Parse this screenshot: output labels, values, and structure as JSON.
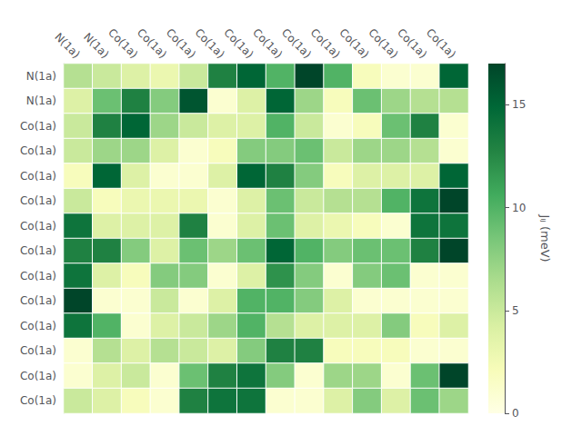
{
  "chart_data": {
    "type": "heatmap",
    "categories": [
      "N(1a)",
      "N(1a)",
      "Co(1a)",
      "Co(1a)",
      "Co(1a)",
      "Co(1a)",
      "Co(1a)",
      "Co(1a)",
      "Co(1a)",
      "Co(1a)",
      "Co(1a)",
      "Co(1a)",
      "Co(1a)",
      "Co(1a)"
    ],
    "matrix": [
      [
        6,
        5,
        4,
        3,
        5,
        13,
        15,
        10,
        17,
        10,
        2,
        1,
        1,
        15
      ],
      [
        4,
        9,
        13,
        8,
        16,
        1,
        4,
        15,
        7,
        2,
        9,
        7,
        6,
        6
      ],
      [
        5,
        13,
        15,
        7,
        5,
        4,
        4,
        10,
        5,
        1,
        2,
        9,
        13,
        1
      ],
      [
        5,
        7,
        7,
        4,
        1,
        2,
        8,
        8,
        9,
        5,
        7,
        7,
        6,
        1
      ],
      [
        2,
        15,
        4,
        1,
        1,
        4,
        15,
        13,
        8,
        2,
        4,
        4,
        4,
        15
      ],
      [
        5,
        2,
        3,
        3,
        3,
        1,
        4,
        9,
        5,
        6,
        6,
        10,
        14,
        17
      ],
      [
        14,
        4,
        4,
        4,
        13,
        1,
        4,
        9,
        4,
        3,
        2,
        1,
        14,
        14
      ],
      [
        13,
        13,
        8,
        4,
        9,
        7,
        9,
        15,
        10,
        8,
        9,
        9,
        13,
        17
      ],
      [
        14,
        4,
        2,
        8,
        8,
        1,
        4,
        12,
        8,
        1,
        8,
        9,
        1,
        1
      ],
      [
        17,
        1,
        1,
        5,
        1,
        4,
        10,
        10,
        8,
        4,
        1,
        1,
        1,
        1
      ],
      [
        14,
        10,
        1,
        4,
        5,
        7,
        10,
        6,
        4,
        4,
        4,
        8,
        2,
        4
      ],
      [
        1,
        6,
        4,
        6,
        5,
        4,
        8,
        13,
        13,
        2,
        2,
        2,
        1,
        1
      ],
      [
        1,
        4,
        5,
        1,
        9,
        13,
        14,
        8,
        1,
        7,
        7,
        1,
        9,
        17
      ],
      [
        5,
        4,
        2,
        1,
        13,
        14,
        14,
        1,
        1,
        4,
        8,
        4,
        9,
        7
      ]
    ],
    "colorbar": {
      "label": "Jᵢⱼ (meV)",
      "range": [
        0,
        17
      ],
      "ticks": [
        0,
        5,
        10,
        15
      ],
      "color": "YlGn"
    }
  }
}
